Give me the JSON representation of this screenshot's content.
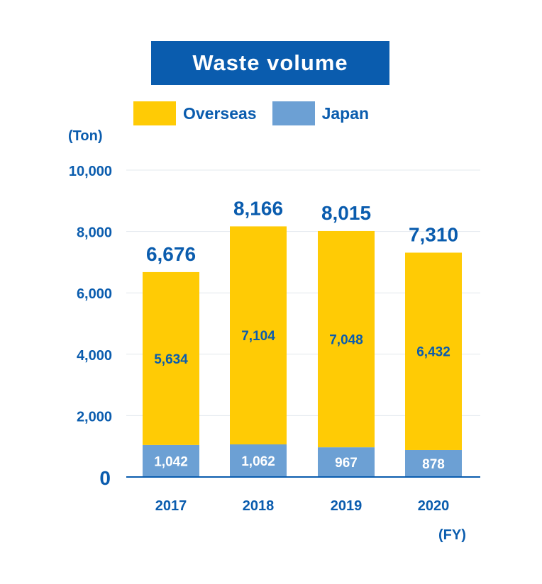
{
  "colors": {
    "overseas": "#ffcb05",
    "japan": "#6ca0d4",
    "text": "#0a5cae",
    "inner_japan_text": "#ffffff",
    "inner_overseas_text": "#0a5cae",
    "grid": "#e3e8ee",
    "axis": "#0a5cae"
  },
  "chart_data": {
    "type": "bar",
    "stacked": true,
    "title": "Waste volume",
    "ylabel": "(Ton)",
    "xlabel": "(FY)",
    "categories": [
      "2017",
      "2018",
      "2019",
      "2020"
    ],
    "series": [
      {
        "name": "Japan",
        "values": [
          1042,
          1062,
          967,
          878
        ]
      },
      {
        "name": "Overseas",
        "values": [
          5634,
          7104,
          7048,
          6432
        ]
      }
    ],
    "totals": [
      6676,
      8166,
      8015,
      7310
    ],
    "ylim": [
      0,
      10000
    ],
    "yticks": [
      0,
      2000,
      4000,
      6000,
      8000,
      10000
    ],
    "grid": true,
    "legend_position": "top"
  }
}
